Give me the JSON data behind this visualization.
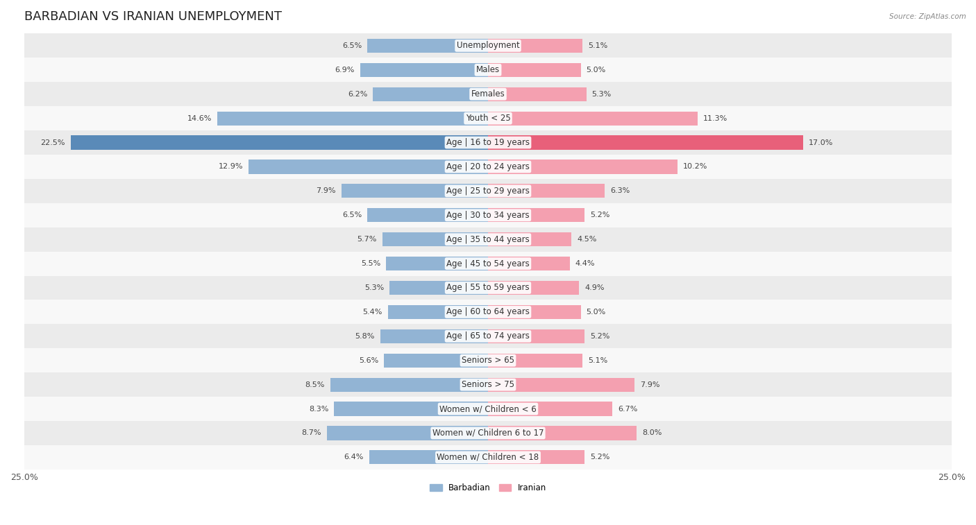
{
  "title": "BARBADIAN VS IRANIAN UNEMPLOYMENT",
  "source": "Source: ZipAtlas.com",
  "categories": [
    "Unemployment",
    "Males",
    "Females",
    "Youth < 25",
    "Age | 16 to 19 years",
    "Age | 20 to 24 years",
    "Age | 25 to 29 years",
    "Age | 30 to 34 years",
    "Age | 35 to 44 years",
    "Age | 45 to 54 years",
    "Age | 55 to 59 years",
    "Age | 60 to 64 years",
    "Age | 65 to 74 years",
    "Seniors > 65",
    "Seniors > 75",
    "Women w/ Children < 6",
    "Women w/ Children 6 to 17",
    "Women w/ Children < 18"
  ],
  "barbadian": [
    6.5,
    6.9,
    6.2,
    14.6,
    22.5,
    12.9,
    7.9,
    6.5,
    5.7,
    5.5,
    5.3,
    5.4,
    5.8,
    5.6,
    8.5,
    8.3,
    8.7,
    6.4
  ],
  "iranian": [
    5.1,
    5.0,
    5.3,
    11.3,
    17.0,
    10.2,
    6.3,
    5.2,
    4.5,
    4.4,
    4.9,
    5.0,
    5.2,
    5.1,
    7.9,
    6.7,
    8.0,
    5.2
  ],
  "barbadian_color": "#92b4d4",
  "iranian_color": "#f4a0b0",
  "highlight_barbadian_color": "#5a8ab8",
  "highlight_iranian_color": "#e8607a",
  "barbadian_label": "Barbadian",
  "iranian_label": "Iranian",
  "axis_max": 25.0,
  "bar_height": 0.58,
  "bg_color": "#ffffff",
  "row_even_color": "#ebebeb",
  "row_odd_color": "#f8f8f8",
  "title_fontsize": 13,
  "label_fontsize": 8.5,
  "value_fontsize": 8.0,
  "axis_fontsize": 9
}
